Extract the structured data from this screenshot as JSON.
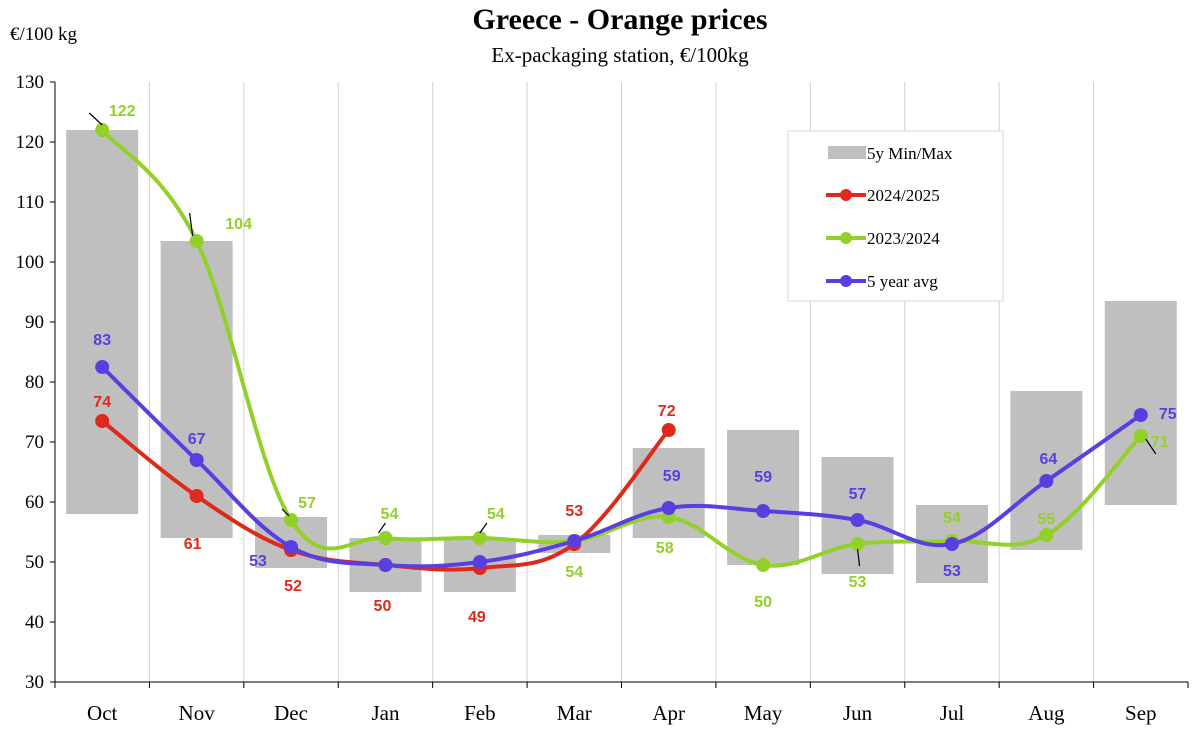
{
  "chart_data": {
    "type": "line",
    "title": "Greece  -  Orange  prices",
    "subtitle": "Ex-packaging  station,  €/100kg",
    "ylabel": "€/100 kg",
    "ylim": [
      30,
      130
    ],
    "yticks": [
      30,
      40,
      50,
      60,
      70,
      80,
      90,
      100,
      110,
      120,
      130
    ],
    "categories": [
      "Oct",
      "Nov",
      "Dec",
      "Jan",
      "Feb",
      "Mar",
      "Apr",
      "May",
      "Jun",
      "Jul",
      "Aug",
      "Sep"
    ],
    "grid": "vertical",
    "legend_position": "top-right",
    "range": {
      "name": "5y Min/Max",
      "color": "#bfbfbf",
      "min": [
        58,
        54,
        49,
        45,
        45,
        51.5,
        54,
        49.5,
        48,
        46.5,
        52,
        59.5
      ],
      "max": [
        122,
        103.5,
        57.5,
        54,
        54,
        54.5,
        69,
        72,
        67.5,
        59.5,
        78.5,
        93.5
      ]
    },
    "series": [
      {
        "name": "2024/2025",
        "color": "#dd2a1b",
        "values": [
          73.5,
          61,
          52,
          49.5,
          49,
          53,
          72,
          null,
          null,
          null,
          null,
          null
        ],
        "labels": [
          "74",
          "61",
          "52",
          "50",
          "49",
          "53",
          "72",
          null,
          null,
          null,
          null,
          null
        ]
      },
      {
        "name": "2023/2024",
        "color": "#92d02a",
        "values": [
          122,
          103.5,
          57,
          54,
          54,
          53.5,
          57.5,
          49.5,
          53,
          53.5,
          54.5,
          71
        ],
        "labels": [
          "122",
          "104",
          "57",
          "54",
          "54",
          "54",
          "58",
          "50",
          "53",
          "54",
          "55",
          "71"
        ]
      },
      {
        "name": "5 year avg",
        "color": "#5a3fe0",
        "values": [
          82.5,
          67,
          52.5,
          49.5,
          50,
          53.5,
          59,
          58.5,
          57,
          53,
          63.5,
          74.5
        ],
        "labels": [
          "83",
          "67",
          "53",
          null,
          null,
          null,
          "59",
          "59",
          "57",
          "53",
          "64",
          "75"
        ]
      }
    ]
  }
}
